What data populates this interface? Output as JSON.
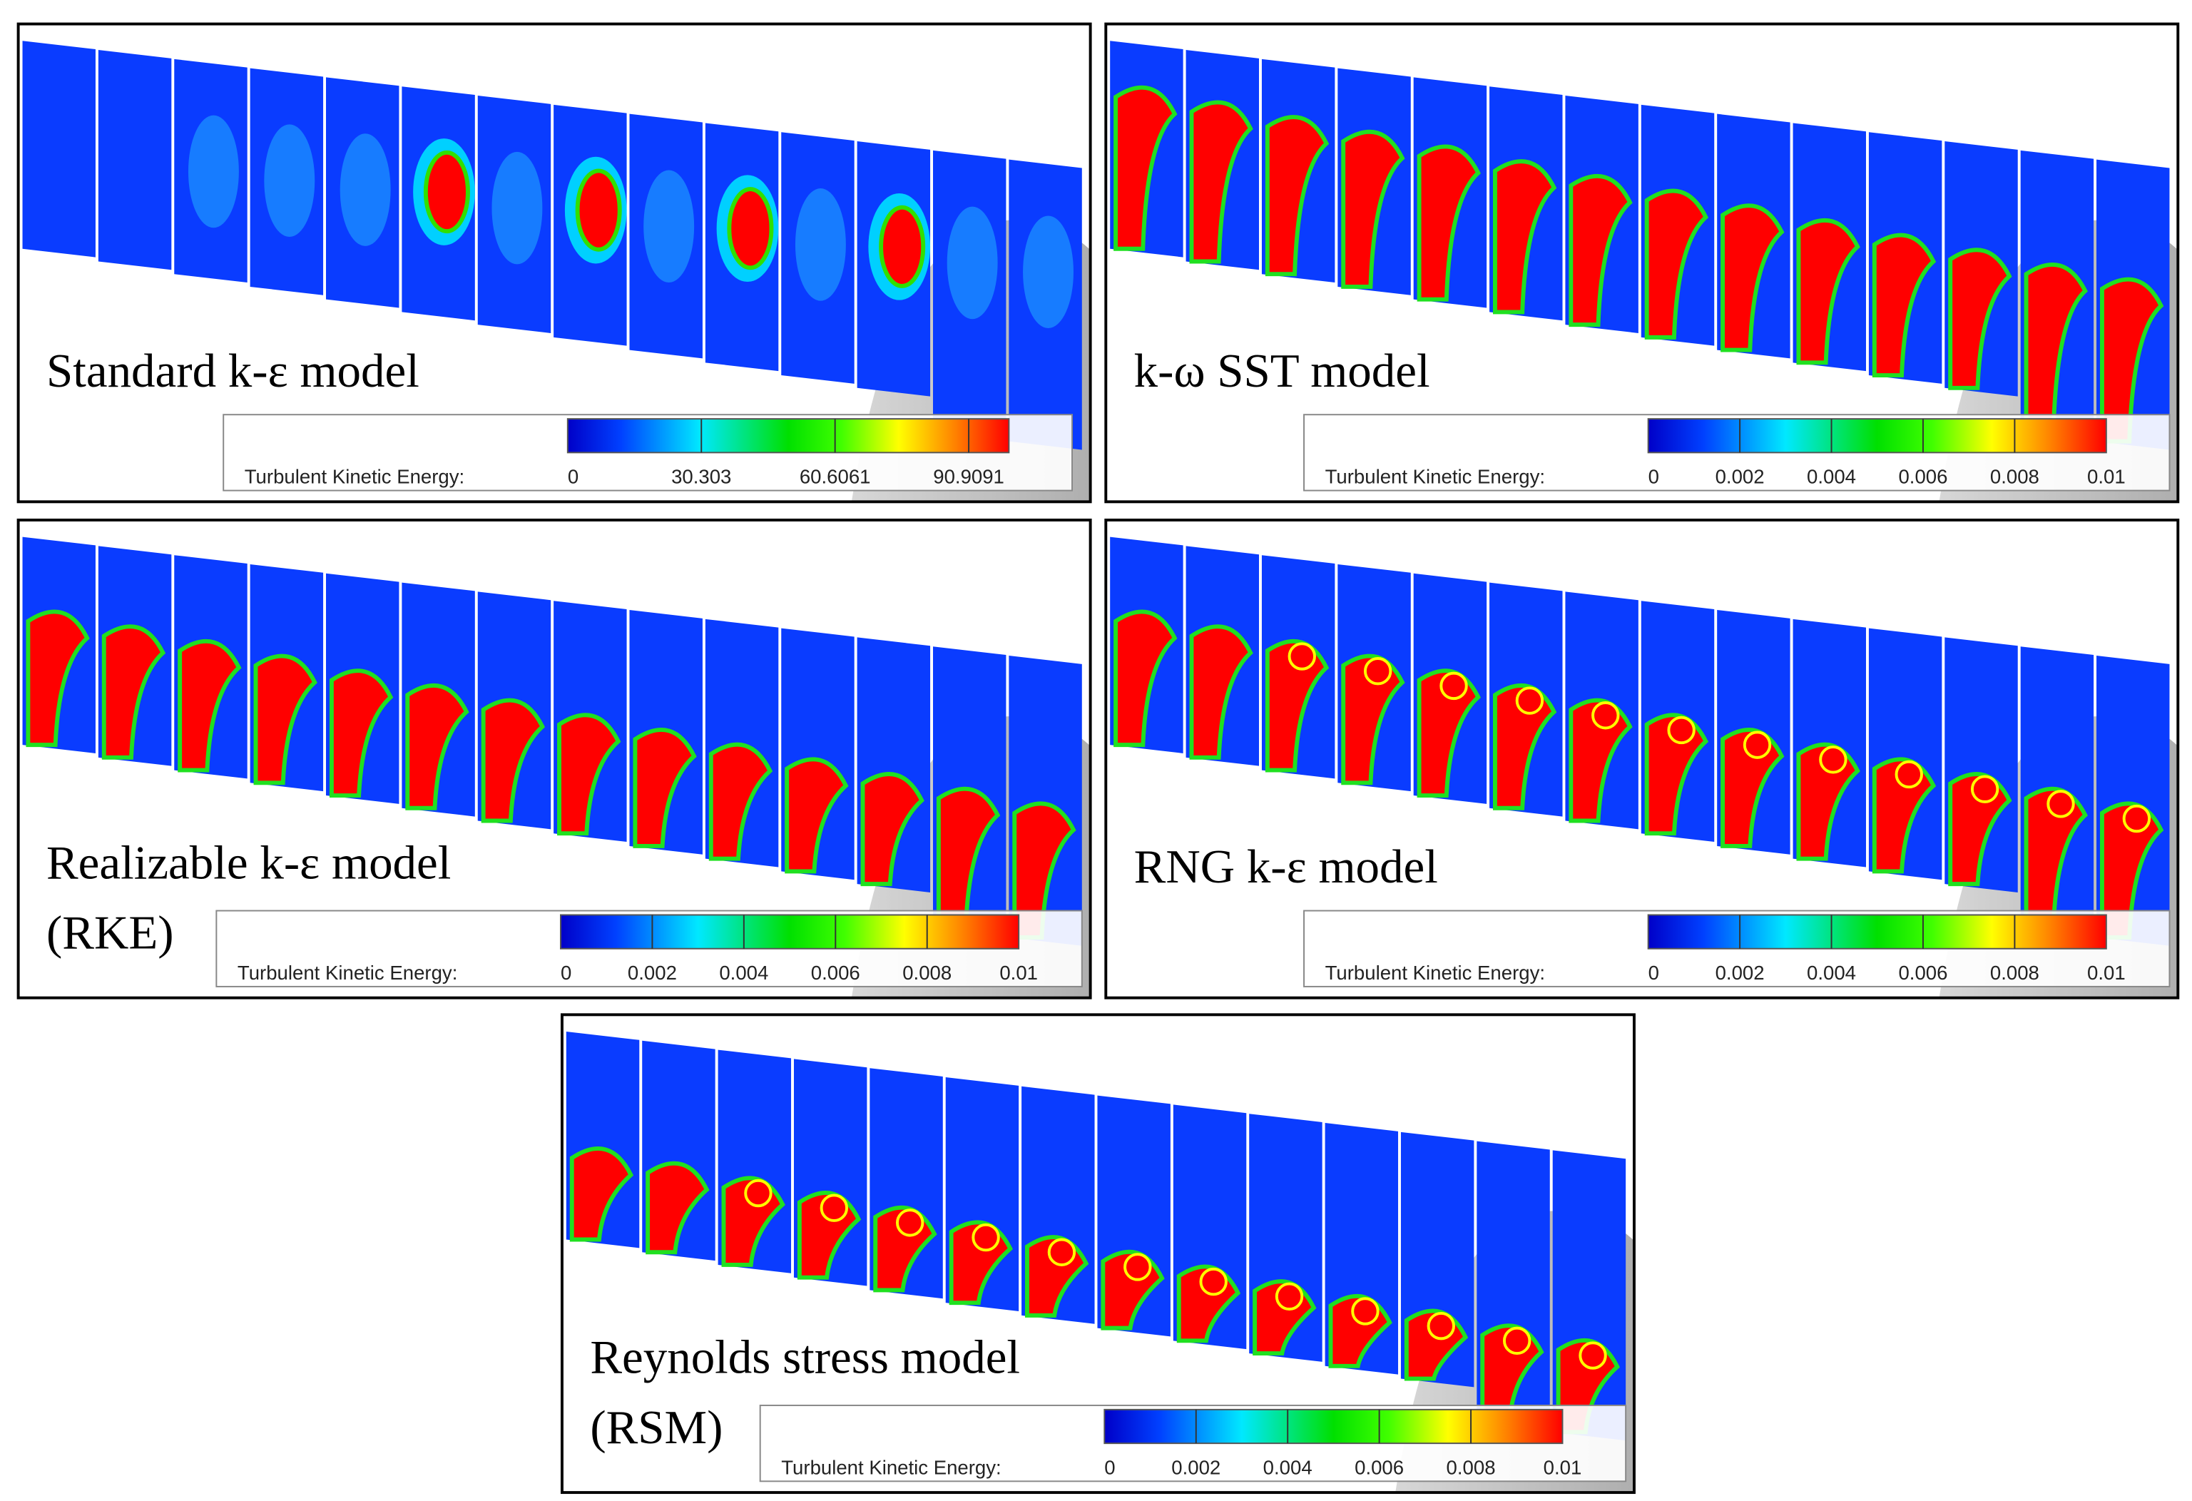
{
  "panels": [
    {
      "label": [
        "Standard k-ε model"
      ],
      "legend": {
        "title": "Turbulent Kinetic Energy:",
        "ticks": [
          "0",
          "30.303",
          "60.6061",
          "90.9091"
        ]
      }
    },
    {
      "label": [
        "k-ω SST model"
      ],
      "legend": {
        "title": "Turbulent Kinetic Energy:",
        "ticks": [
          "0",
          "0.002",
          "0.004",
          "0.006",
          "0.008",
          "0.01"
        ]
      }
    },
    {
      "label": [
        "Realizable k-ε model",
        "(RKE)"
      ],
      "legend": {
        "title": "Turbulent Kinetic Energy:",
        "ticks": [
          "0",
          "0.002",
          "0.004",
          "0.006",
          "0.008",
          "0.01"
        ]
      }
    },
    {
      "label": [
        "RNG k-ε model"
      ],
      "legend": {
        "title": "Turbulent Kinetic Energy:",
        "ticks": [
          "0",
          "0.002",
          "0.004",
          "0.006",
          "0.008",
          "0.01"
        ]
      }
    },
    {
      "label": [
        "Reynolds stress model",
        "(RSM)"
      ],
      "legend": {
        "title": "Turbulent Kinetic Energy:",
        "ticks": [
          "0",
          "0.002",
          "0.004",
          "0.006",
          "0.008",
          "0.01"
        ]
      }
    }
  ]
}
